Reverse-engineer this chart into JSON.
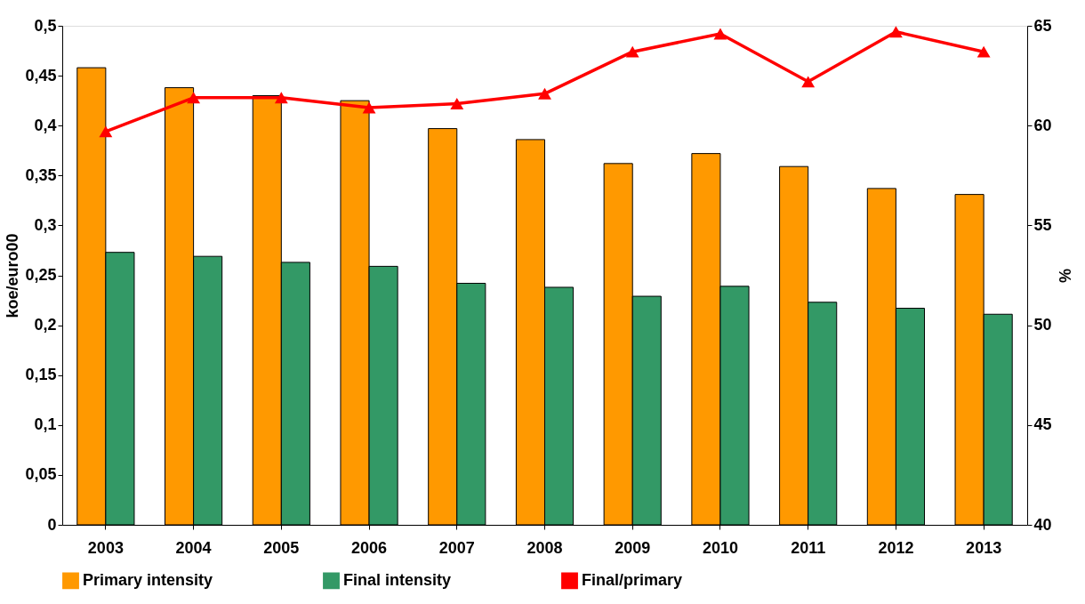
{
  "chart_data": {
    "type": "bar",
    "categories": [
      "2003",
      "2004",
      "2005",
      "2006",
      "2007",
      "2008",
      "2009",
      "2010",
      "2011",
      "2012",
      "2013"
    ],
    "series": [
      {
        "name": "Primary intensity",
        "color": "#ff9900",
        "values": [
          0.458,
          0.438,
          0.43,
          0.425,
          0.397,
          0.386,
          0.362,
          0.372,
          0.359,
          0.337,
          0.331
        ]
      },
      {
        "name": "Final intensity",
        "color": "#339966",
        "values": [
          0.273,
          0.269,
          0.263,
          0.259,
          0.242,
          0.238,
          0.229,
          0.239,
          0.223,
          0.217,
          0.211
        ]
      },
      {
        "name": "Final/primary",
        "color": "#ff0000",
        "type": "line",
        "axis": "y2",
        "marker": "triangle",
        "values": [
          59.7,
          61.4,
          61.4,
          60.9,
          61.1,
          61.6,
          63.7,
          64.6,
          62.2,
          64.7,
          63.7
        ]
      }
    ],
    "ylabel": "koe/euro00",
    "y2label": "%",
    "ylim": [
      0,
      0.5
    ],
    "yticks": [
      0,
      {
        "value": 0.05,
        "label": "0,05"
      },
      {
        "value": 0.1,
        "label": "0,1"
      },
      {
        "value": 0.15,
        "label": "0,15"
      },
      {
        "value": 0.2,
        "label": "0,2"
      },
      {
        "value": 0.25,
        "label": "0,25"
      },
      {
        "value": 0.3,
        "label": "0,3"
      },
      {
        "value": 0.35,
        "label": "0,35"
      },
      {
        "value": 0.4,
        "label": "0,4"
      },
      {
        "value": 0.45,
        "label": "0,45"
      },
      {
        "value": 0.5,
        "label": "0,5"
      }
    ],
    "y2lim": [
      40,
      65
    ],
    "y2ticks": [
      40,
      45,
      50,
      55,
      60,
      65
    ],
    "grid": false,
    "legend": "bottom"
  }
}
